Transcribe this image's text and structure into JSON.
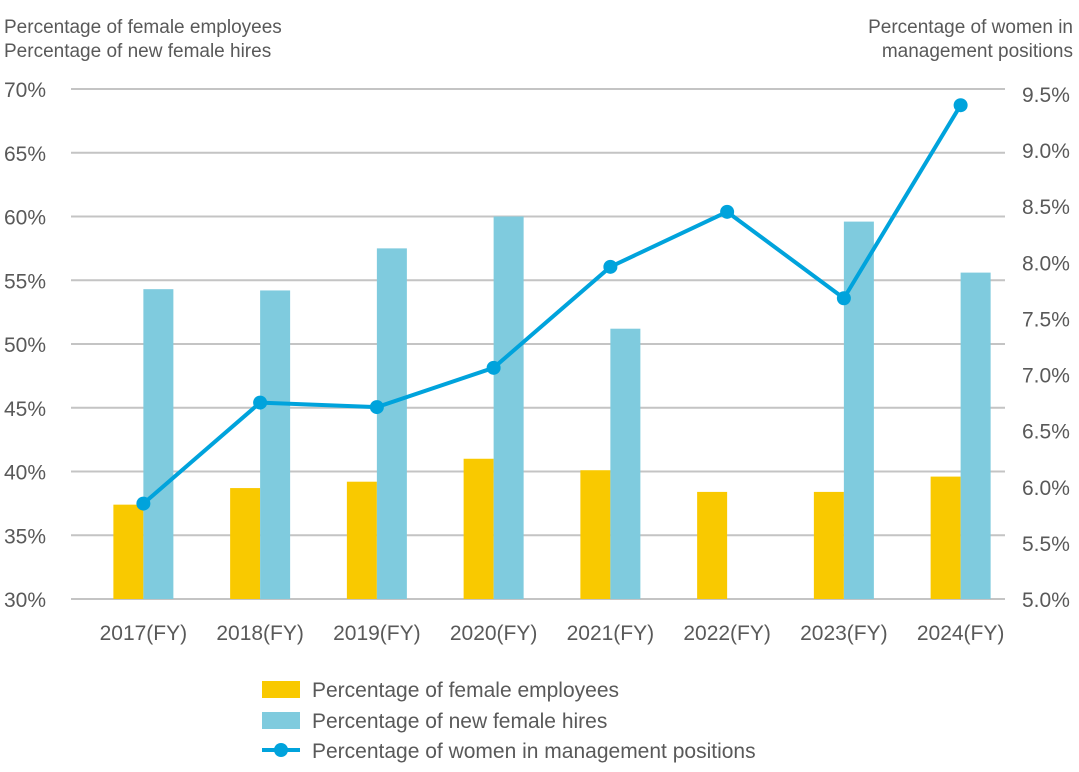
{
  "chart_data": {
    "type": "bar",
    "title_left": [
      "Percentage of female employees",
      "Percentage of new female hires"
    ],
    "title_right": [
      "Percentage of women in",
      "management positions"
    ],
    "categories": [
      "2017(FY)",
      "2018(FY)",
      "2019(FY)",
      "2020(FY)",
      "2021(FY)",
      "2022(FY)",
      "2023(FY)",
      "2024(FY)"
    ],
    "left_axis": {
      "ylim": [
        30,
        70
      ],
      "ticks": [
        30,
        35,
        40,
        45,
        50,
        55,
        60,
        65,
        70
      ],
      "tick_labels": [
        "30%",
        "35%",
        "40%",
        "45%",
        "50%",
        "55%",
        "60%",
        "65%",
        "70%"
      ]
    },
    "right_axis": {
      "ylim": [
        5.0,
        9.5
      ],
      "ticks": [
        5.0,
        5.5,
        6.0,
        6.5,
        7.0,
        7.5,
        8.0,
        8.5,
        9.0,
        9.5
      ],
      "tick_labels": [
        "5.0%",
        "5.5%",
        "6.0%",
        "6.5%",
        "7.0%",
        "7.5%",
        "8.0%",
        "8.5%",
        "9.0%",
        "9.5%"
      ]
    },
    "grid": true,
    "legend_position": "bottom",
    "series": [
      {
        "name": "Percentage of female employees",
        "type": "bar",
        "axis": "left",
        "color": "#F9C900",
        "values": [
          37.4,
          38.7,
          39.2,
          41.0,
          40.1,
          38.4,
          38.4,
          39.6
        ]
      },
      {
        "name": "Percentage of new female hires",
        "type": "bar",
        "axis": "left",
        "color": "#7FCBDE",
        "values": [
          54.3,
          54.2,
          57.5,
          60.0,
          51.2,
          null,
          59.6,
          55.6
        ]
      },
      {
        "name": "Percentage of women in management positions",
        "type": "line",
        "axis": "right",
        "color": "#00A3DC",
        "values": [
          5.85,
          6.75,
          6.71,
          7.06,
          7.96,
          8.45,
          7.68,
          9.4
        ]
      }
    ]
  }
}
